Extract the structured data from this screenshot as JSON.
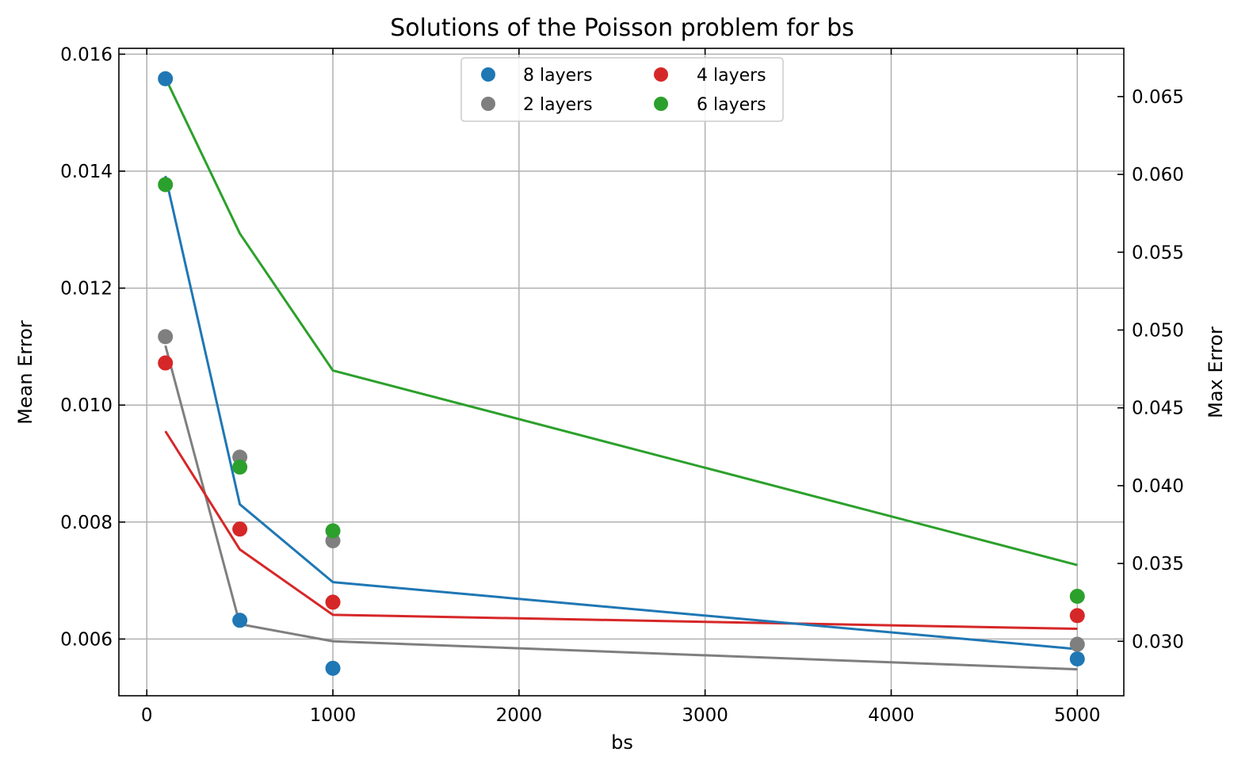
{
  "chart_data": {
    "type": "scatter",
    "title": "Solutions of the Poisson problem for bs",
    "xlabel": "bs",
    "ylabel_left": "Mean Error",
    "ylabel_right": "Max Error",
    "xlim": [
      -150,
      5250
    ],
    "ylim_left": [
      0.00503,
      0.0161
    ],
    "ylim_right": [
      0.0265,
      0.0681
    ],
    "x_ticks": [
      0,
      1000,
      2000,
      3000,
      4000,
      5000
    ],
    "y_ticks_left": [
      0.006,
      0.008,
      0.01,
      0.012,
      0.014,
      0.016
    ],
    "y_ticks_left_labels": [
      "0.006",
      "0.008",
      "0.010",
      "0.012",
      "0.014",
      "0.016"
    ],
    "y_ticks_right": [
      0.03,
      0.035,
      0.04,
      0.045,
      0.05,
      0.055,
      0.06,
      0.065
    ],
    "y_ticks_right_labels": [
      "0.030",
      "0.035",
      "0.040",
      "0.045",
      "0.050",
      "0.055",
      "0.060",
      "0.065"
    ],
    "x": [
      100,
      500,
      1000,
      5000
    ],
    "grid": true,
    "legend_position": "top-center",
    "series": [
      {
        "name": "8 layers",
        "color": "#1f77b4",
        "mean_error": [
          0.01558,
          0.00632,
          0.0055,
          0.00566
        ],
        "max_error": [
          0.0599,
          0.0388,
          0.0338,
          0.0295
        ]
      },
      {
        "name": "4 layers",
        "color": "#d62728",
        "mean_error": [
          0.01072,
          0.00788,
          0.00663,
          0.0064
        ],
        "max_error": [
          0.0435,
          0.0359,
          0.0317,
          0.0308
        ]
      },
      {
        "name": "2 layers",
        "color": "#7f7f7f",
        "mean_error": [
          0.01117,
          0.00911,
          0.00768,
          0.00591
        ],
        "max_error": [
          0.049,
          0.0311,
          0.03,
          0.0282
        ]
      },
      {
        "name": "6 layers",
        "color": "#2ca02c",
        "mean_error": [
          0.01377,
          0.00894,
          0.00785,
          0.00673
        ],
        "max_error": [
          0.0662,
          0.0562,
          0.0474,
          0.0349
        ]
      }
    ]
  }
}
